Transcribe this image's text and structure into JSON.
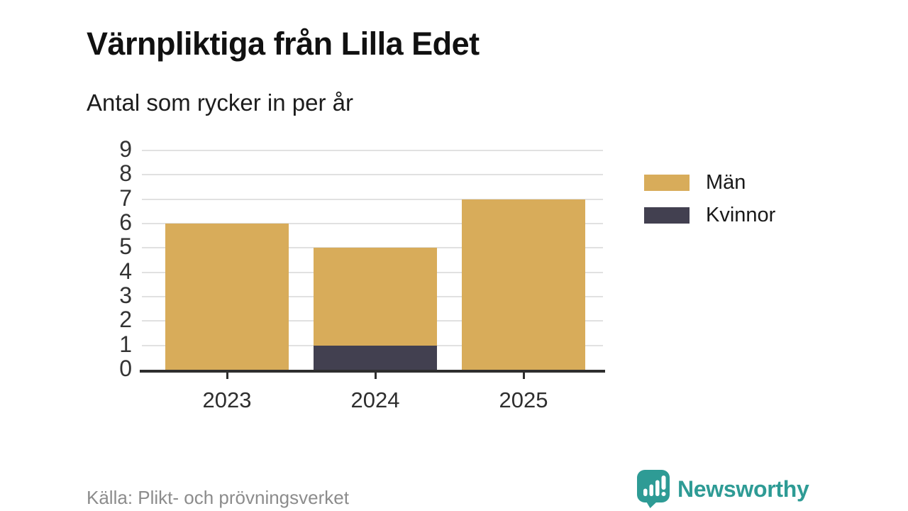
{
  "header": {
    "title": "Värnpliktiga från Lilla Edet",
    "subtitle": "Antal som rycker in per år"
  },
  "chart_data": {
    "type": "bar",
    "stacked": true,
    "title": "Värnpliktiga från Lilla Edet",
    "subtitle": "Antal som rycker in per år",
    "categories": [
      "2023",
      "2024",
      "2025"
    ],
    "series": [
      {
        "name": "Män",
        "color": "#d8ac5a",
        "values": [
          6,
          4,
          7
        ]
      },
      {
        "name": "Kvinnor",
        "color": "#424050",
        "values": [
          0,
          1,
          0
        ]
      }
    ],
    "totals": [
      6,
      5,
      7
    ],
    "xlabel": "",
    "ylabel": "",
    "ylim": [
      0,
      9
    ],
    "yticks": [
      0,
      1,
      2,
      3,
      4,
      5,
      6,
      7,
      8,
      9
    ],
    "grid": true,
    "legend_position": "right"
  },
  "footer": {
    "source": "Källa: Plikt- och prövningsverket"
  },
  "brand": {
    "name": "Newsworthy",
    "color": "#2e9b95",
    "icon": "speech-bubble-bar-chart-icon"
  }
}
